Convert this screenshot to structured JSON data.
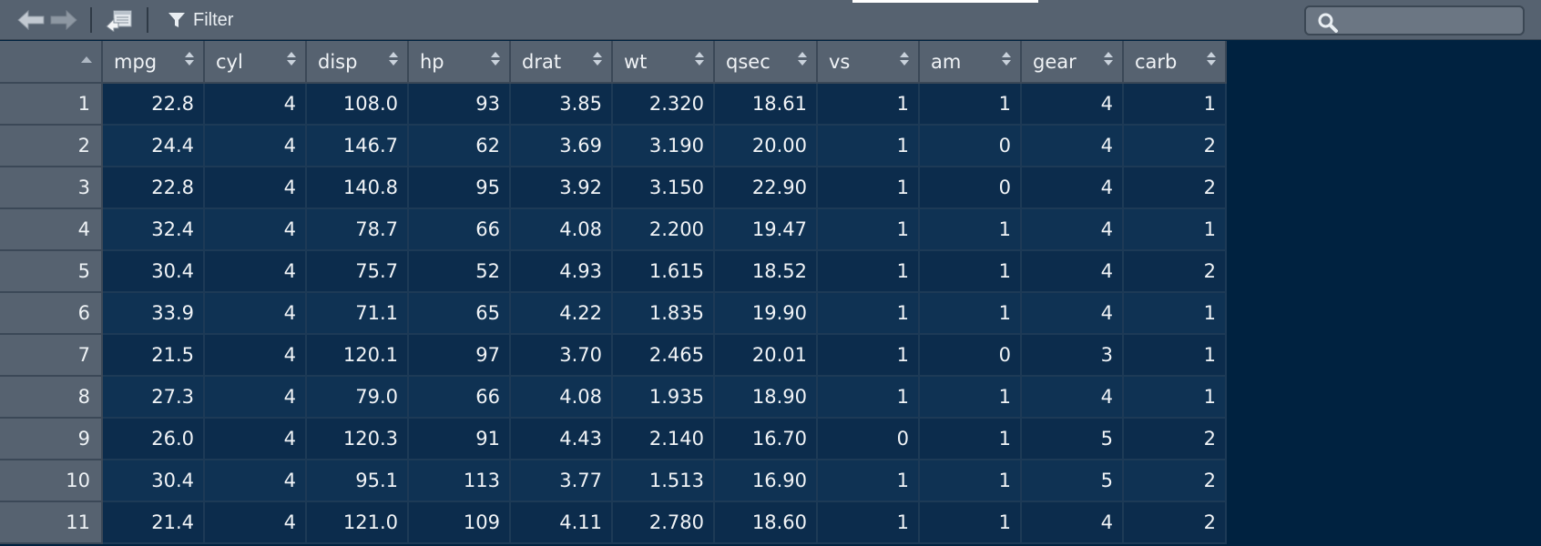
{
  "toolbar": {
    "filter_label": "Filter",
    "search_placeholder": "",
    "icons": {
      "back": "arrow-left-icon",
      "forward": "arrow-right-icon",
      "popout": "popout-window-icon",
      "filter": "filter-funnel-icon",
      "search": "search-icon"
    }
  },
  "colors": {
    "toolbar_bg": "#566270",
    "page_bg": "#002240",
    "cell_bg": "#0c2c4c",
    "cell_bg_alt": "#0f3253",
    "header_text": "#f0f3f6"
  },
  "table": {
    "columns": [
      "mpg",
      "cyl",
      "disp",
      "hp",
      "drat",
      "wt",
      "qsec",
      "vs",
      "am",
      "gear",
      "carb"
    ],
    "rows": [
      {
        "name": "1",
        "cells": [
          "22.8",
          "4",
          "108.0",
          "93",
          "3.85",
          "2.320",
          "18.61",
          "1",
          "1",
          "4",
          "1"
        ]
      },
      {
        "name": "2",
        "cells": [
          "24.4",
          "4",
          "146.7",
          "62",
          "3.69",
          "3.190",
          "20.00",
          "1",
          "0",
          "4",
          "2"
        ]
      },
      {
        "name": "3",
        "cells": [
          "22.8",
          "4",
          "140.8",
          "95",
          "3.92",
          "3.150",
          "22.90",
          "1",
          "0",
          "4",
          "2"
        ]
      },
      {
        "name": "4",
        "cells": [
          "32.4",
          "4",
          "78.7",
          "66",
          "4.08",
          "2.200",
          "19.47",
          "1",
          "1",
          "4",
          "1"
        ]
      },
      {
        "name": "5",
        "cells": [
          "30.4",
          "4",
          "75.7",
          "52",
          "4.93",
          "1.615",
          "18.52",
          "1",
          "1",
          "4",
          "2"
        ]
      },
      {
        "name": "6",
        "cells": [
          "33.9",
          "4",
          "71.1",
          "65",
          "4.22",
          "1.835",
          "19.90",
          "1",
          "1",
          "4",
          "1"
        ]
      },
      {
        "name": "7",
        "cells": [
          "21.5",
          "4",
          "120.1",
          "97",
          "3.70",
          "2.465",
          "20.01",
          "1",
          "0",
          "3",
          "1"
        ]
      },
      {
        "name": "8",
        "cells": [
          "27.3",
          "4",
          "79.0",
          "66",
          "4.08",
          "1.935",
          "18.90",
          "1",
          "1",
          "4",
          "1"
        ]
      },
      {
        "name": "9",
        "cells": [
          "26.0",
          "4",
          "120.3",
          "91",
          "4.43",
          "2.140",
          "16.70",
          "0",
          "1",
          "5",
          "2"
        ]
      },
      {
        "name": "10",
        "cells": [
          "30.4",
          "4",
          "95.1",
          "113",
          "3.77",
          "1.513",
          "16.90",
          "1",
          "1",
          "5",
          "2"
        ]
      },
      {
        "name": "11",
        "cells": [
          "21.4",
          "4",
          "121.0",
          "109",
          "4.11",
          "2.780",
          "18.60",
          "1",
          "1",
          "4",
          "2"
        ]
      }
    ]
  }
}
